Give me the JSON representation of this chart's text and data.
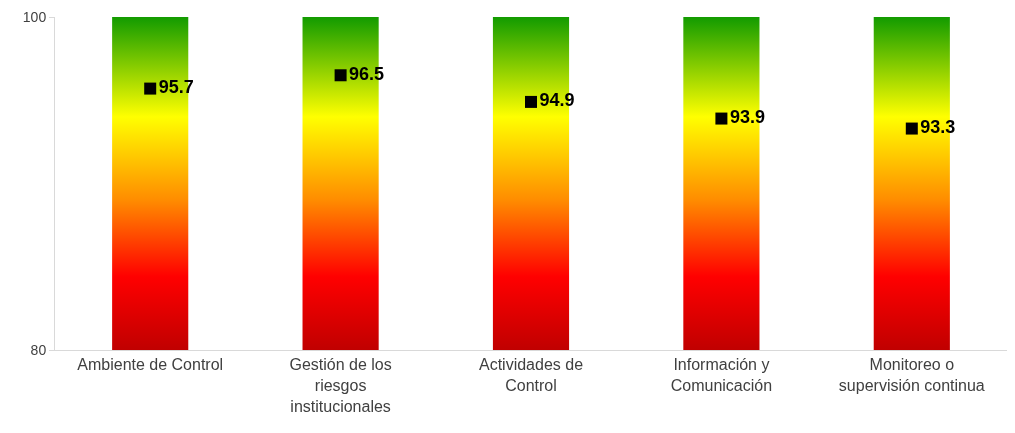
{
  "chart_data": {
    "type": "bar",
    "categories": [
      "Ambiente de Control",
      "Gestión de los\nriesgos\ninstitucionales",
      "Actividades de\nControl",
      "Información y\nComunicación",
      "Monitoreo o\nsupervisión continua"
    ],
    "series": [
      {
        "color": "#ffff00",
        "base": [
          80,
          80,
          80,
          80,
          80
        ],
        "values": [
          20,
          20,
          20,
          20,
          20
        ]
      },
      {
        "type": "scatter",
        "color": "#000000",
        "values": [
          95.7,
          96.5,
          94.9,
          93.9,
          93.3
        ],
        "value_labels": [
          "95.7",
          "96.5",
          "94.9",
          "93.9",
          "93.3"
        ]
      }
    ],
    "ylim": [
      80,
      100
    ],
    "yticks": [
      80,
      100
    ],
    "marker": "square"
  }
}
